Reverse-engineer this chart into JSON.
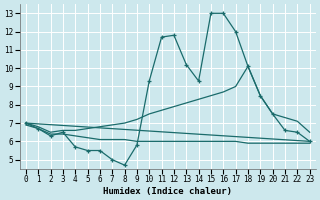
{
  "xlabel": "Humidex (Indice chaleur)",
  "xlim": [
    -0.5,
    23.5
  ],
  "ylim": [
    4.5,
    13.5
  ],
  "yticks": [
    5,
    6,
    7,
    8,
    9,
    10,
    11,
    12,
    13
  ],
  "xticks": [
    0,
    1,
    2,
    3,
    4,
    5,
    6,
    7,
    8,
    9,
    10,
    11,
    12,
    13,
    14,
    15,
    16,
    17,
    18,
    19,
    20,
    21,
    22,
    23
  ],
  "bg_color": "#cde8ed",
  "line_color": "#1a6b6b",
  "grid_color": "#ffffff",
  "lines": [
    {
      "x": [
        0,
        1,
        2,
        3,
        4,
        5,
        6,
        7,
        8,
        9,
        10,
        11,
        12,
        13,
        14,
        15,
        16,
        17,
        18,
        19,
        20,
        21,
        22,
        23
      ],
      "y": [
        7.0,
        6.7,
        6.3,
        6.5,
        5.7,
        5.5,
        5.5,
        5.0,
        4.7,
        5.8,
        9.3,
        11.7,
        11.8,
        10.2,
        9.3,
        13.0,
        13.0,
        12.0,
        10.1,
        8.5,
        7.5,
        6.6,
        6.5,
        6.0
      ]
    },
    {
      "x": [
        0,
        1,
        2,
        3,
        4,
        5,
        6,
        7,
        8,
        9,
        10,
        11,
        12,
        13,
        14,
        15,
        16,
        17,
        18,
        19,
        20,
        21,
        22,
        23
      ],
      "y": [
        7.0,
        6.8,
        6.5,
        6.6,
        6.6,
        6.7,
        6.8,
        6.9,
        7.0,
        7.2,
        7.5,
        7.7,
        7.9,
        8.1,
        8.3,
        8.5,
        8.7,
        9.0,
        10.1,
        8.5,
        7.5,
        7.3,
        7.1,
        6.5
      ]
    },
    {
      "x": [
        0,
        23
      ],
      "y": [
        7.0,
        6.0
      ]
    },
    {
      "x": [
        0,
        1,
        2,
        3,
        4,
        5,
        6,
        7,
        8,
        9,
        10,
        11,
        12,
        13,
        14,
        15,
        16,
        17,
        18,
        19,
        20,
        21,
        22,
        23
      ],
      "y": [
        6.9,
        6.7,
        6.4,
        6.4,
        6.3,
        6.2,
        6.1,
        6.1,
        6.1,
        6.0,
        6.0,
        6.0,
        6.0,
        6.0,
        6.0,
        6.0,
        6.0,
        6.0,
        5.9,
        5.9,
        5.9,
        5.9,
        5.9,
        5.9
      ]
    }
  ]
}
